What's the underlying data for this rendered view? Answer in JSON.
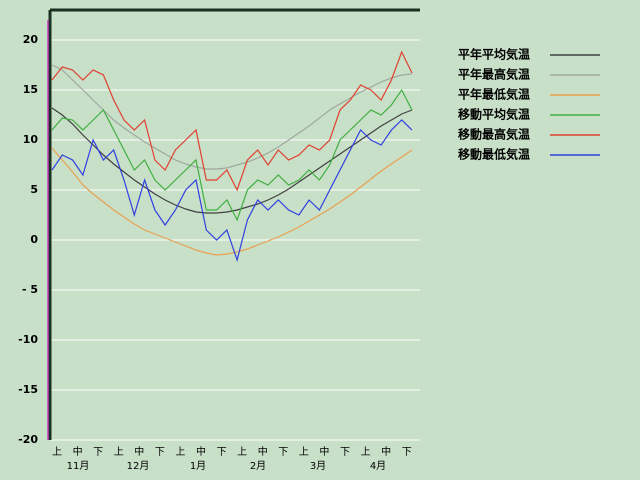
{
  "chart_data": {
    "type": "line",
    "categories": [
      "上",
      null,
      "中",
      null,
      "下",
      null,
      "上",
      null,
      "中",
      null,
      "下",
      null,
      "上",
      null,
      "中",
      null,
      "下",
      null,
      "上",
      null,
      "中",
      null,
      "下",
      null,
      "上",
      null,
      "中",
      null,
      "下",
      null,
      "上",
      null,
      "中",
      null,
      "下",
      null
    ],
    "month_labels": [
      "11月",
      "12月",
      "1月",
      "2月",
      "3月",
      "4月"
    ],
    "ylim": [
      -20,
      22
    ],
    "yticks": [
      {
        "value": -20,
        "label": "-20"
      },
      {
        "value": -15,
        "label": "-15"
      },
      {
        "value": -10,
        "label": "-10"
      },
      {
        "value": -5,
        "label": "- 5"
      },
      0,
      5,
      10,
      15,
      20
    ],
    "grid": true,
    "legend": "right",
    "series": [
      {
        "name": "平年平均気温",
        "color": "#404040",
        "values": [
          13.2,
          12.5,
          11.6,
          10.5,
          9.5,
          8.5,
          7.6,
          6.8,
          6.0,
          5.3,
          4.6,
          4.0,
          3.5,
          3.1,
          2.8,
          2.7,
          2.7,
          2.8,
          3.0,
          3.3,
          3.6,
          4.0,
          4.5,
          5.1,
          5.8,
          6.5,
          7.2,
          7.9,
          8.6,
          9.3,
          10.0,
          10.7,
          11.4,
          12.0,
          12.6,
          13.0
        ]
      },
      {
        "name": "平年最高気温",
        "color": "#a0a8a0",
        "values": [
          17.5,
          17,
          16,
          15,
          14,
          13,
          12,
          11.2,
          10.5,
          9.8,
          9.2,
          8.6,
          8.0,
          7.6,
          7.3,
          7.1,
          7.1,
          7.2,
          7.5,
          7.8,
          8.2,
          8.7,
          9.3,
          10,
          10.7,
          11.4,
          12.2,
          13,
          13.6,
          14.2,
          14.8,
          15.3,
          15.8,
          16.2,
          16.5,
          16.6
        ]
      },
      {
        "name": "平年最低気温",
        "color": "#e8a050",
        "values": [
          9.2,
          8,
          6.8,
          5.5,
          4.6,
          3.8,
          3.0,
          2.3,
          1.6,
          1.0,
          0.6,
          0.2,
          -0.2,
          -0.6,
          -1.0,
          -1.3,
          -1.5,
          -1.4,
          -1.2,
          -0.9,
          -0.5,
          -0.1,
          0.3,
          0.8,
          1.3,
          1.9,
          2.5,
          3.1,
          3.8,
          4.5,
          5.3,
          6.1,
          6.9,
          7.6,
          8.3,
          9.0
        ]
      },
      {
        "name": "移動平均気温",
        "color": "#40b040",
        "values": [
          11,
          12.2,
          12,
          11,
          12,
          13,
          11,
          9,
          7,
          8,
          6,
          5,
          6,
          7,
          8,
          3,
          3,
          4,
          2,
          5,
          6,
          5.5,
          6.5,
          5.5,
          6,
          7,
          6,
          7.5,
          10,
          11,
          12,
          13,
          12.5,
          13.5,
          15,
          13
        ]
      },
      {
        "name": "移動最高気温",
        "color": "#e04030",
        "values": [
          16,
          17.3,
          17,
          16,
          17,
          16.5,
          14,
          12,
          11,
          12,
          8,
          7,
          9,
          10,
          11,
          6,
          6,
          7,
          5,
          8,
          9,
          7.5,
          9,
          8,
          8.5,
          9.5,
          9,
          10,
          13,
          14,
          15.5,
          15,
          14,
          16,
          18.8,
          16.7
        ]
      },
      {
        "name": "移動最低気温",
        "color": "#3040e0",
        "values": [
          7,
          8.5,
          8,
          6.5,
          10,
          8,
          9,
          6,
          2.5,
          6,
          3,
          1.5,
          3,
          5,
          6,
          1,
          0,
          1,
          -2,
          2,
          4,
          3,
          4,
          3,
          2.5,
          4,
          3,
          5,
          7,
          9,
          11,
          10,
          9.5,
          11,
          12,
          11
        ]
      }
    ]
  }
}
